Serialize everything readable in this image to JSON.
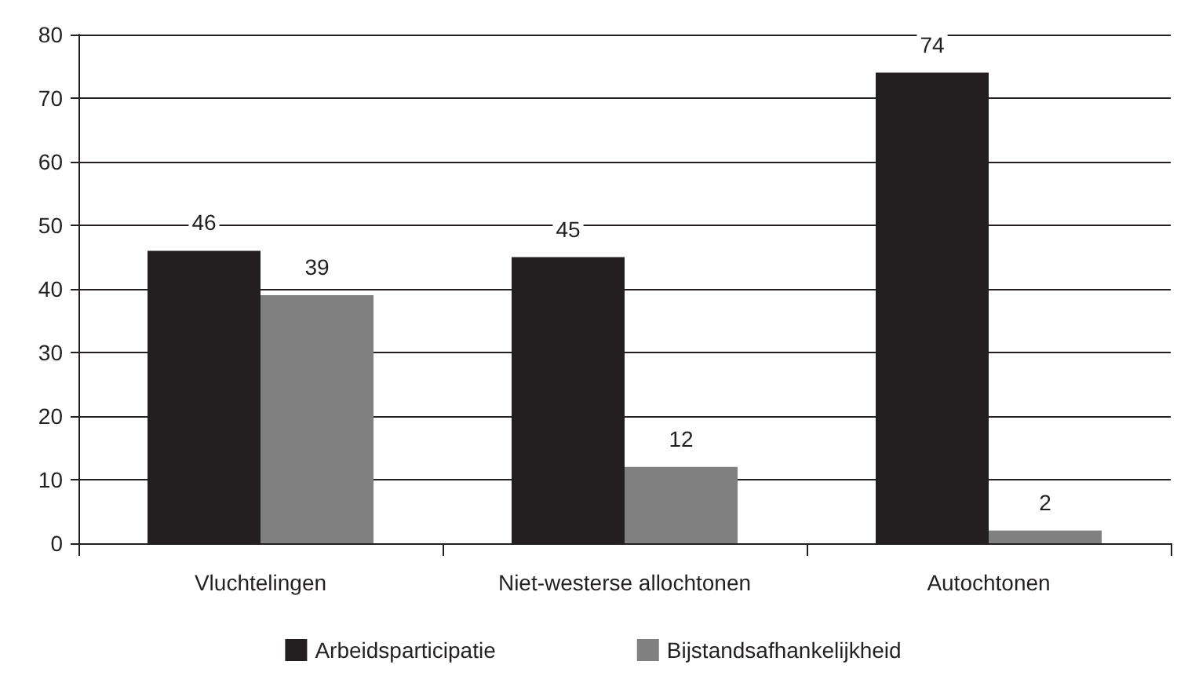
{
  "chart_data": {
    "type": "bar",
    "categories": [
      "Vluchtelingen",
      "Niet-westerse allochtonen",
      "Autochtonen"
    ],
    "series": [
      {
        "name": "Arbeidsparticipatie",
        "color": "#231f20",
        "values": [
          46,
          45,
          74
        ]
      },
      {
        "name": "Bijstandsafhankelijkheid",
        "color": "#808080",
        "values": [
          39,
          12,
          2
        ]
      }
    ],
    "ylim": [
      0,
      80
    ],
    "yticks": [
      0,
      10,
      20,
      30,
      40,
      50,
      60,
      70,
      80
    ],
    "grid": "y",
    "legend": "bottom",
    "data_labels": true
  }
}
